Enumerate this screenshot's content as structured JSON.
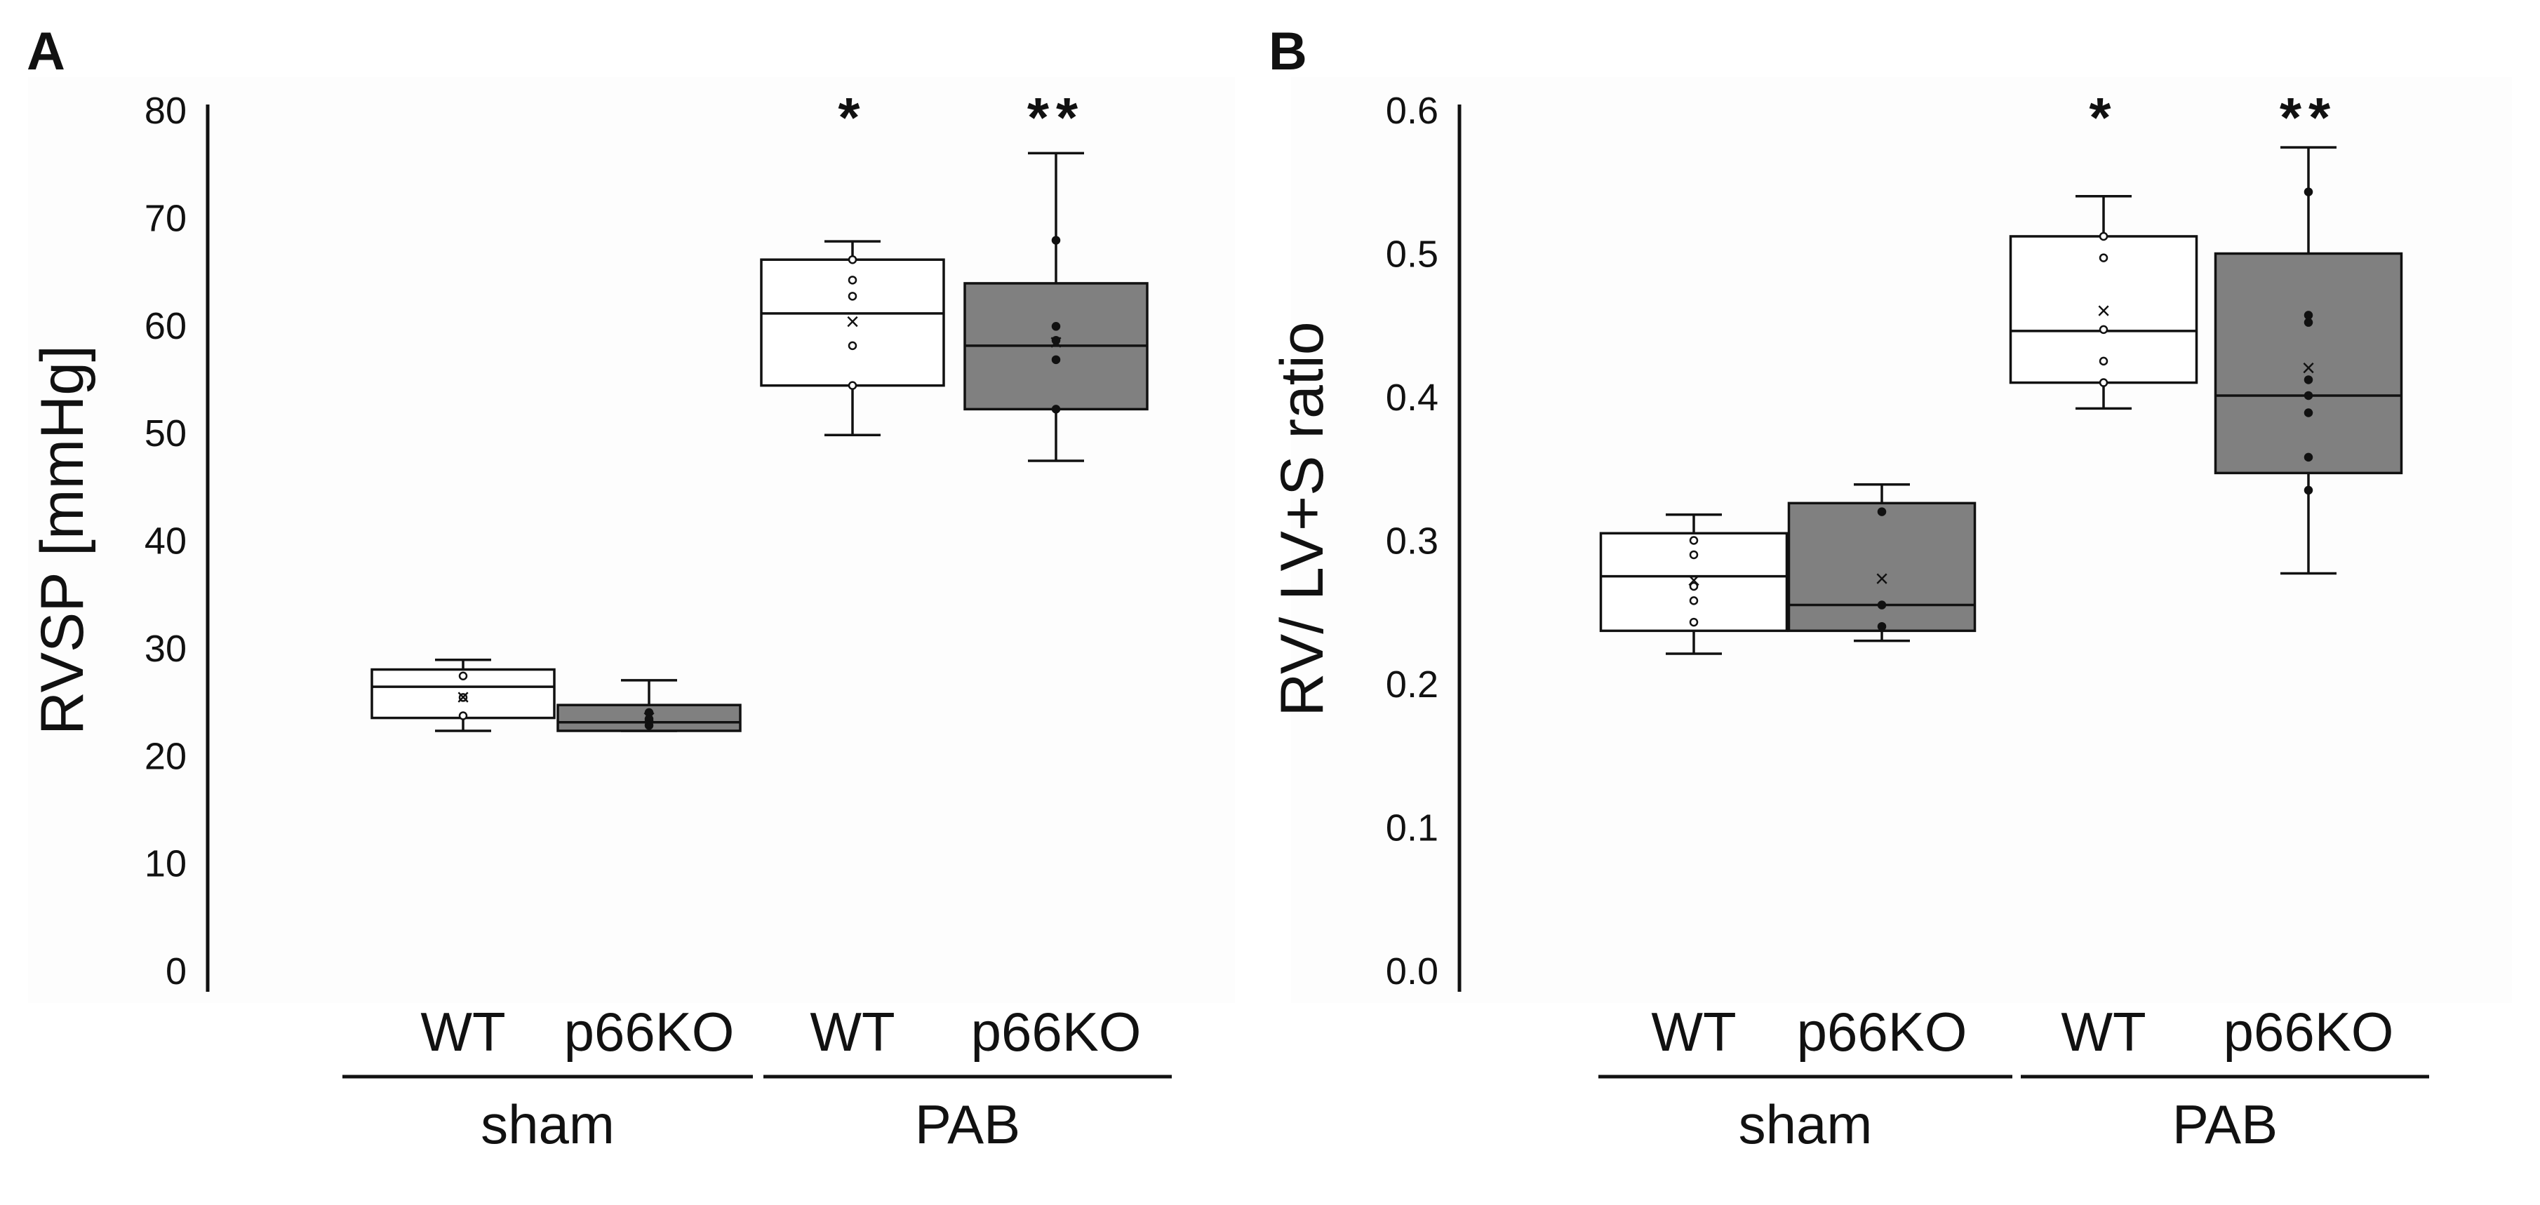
{
  "figure": {
    "panel_letters": [
      "A",
      "B"
    ]
  },
  "colors": {
    "wt_fill": "#ffffff",
    "ko_fill": "#808080",
    "stroke": "#111111",
    "dot": "#111111"
  },
  "chart_data": [
    {
      "type": "boxplot",
      "panel": "A",
      "ylabel": "RVSP [mmHg]",
      "ylim": [
        0,
        80
      ],
      "yticks": [
        "0",
        "10",
        "20",
        "30",
        "40",
        "50",
        "60",
        "70",
        "80"
      ],
      "categories": [
        "WT",
        "p66KO",
        "WT",
        "p66KO"
      ],
      "groups": [
        "sham",
        "PAB"
      ],
      "boxes": [
        {
          "category": "WT",
          "group": "sham",
          "fill": "wt",
          "whisker_low": 22.3,
          "q1": 23.5,
          "median": 26.4,
          "q3": 28.0,
          "whisker_high": 28.9,
          "mean": 25.4,
          "points": [
            23.7,
            25.4,
            27.4
          ],
          "significance": ""
        },
        {
          "category": "p66KO",
          "group": "sham",
          "fill": "ko",
          "whisker_low": 22.3,
          "q1": 22.3,
          "median": 23.1,
          "q3": 24.7,
          "whisker_high": 27.0,
          "mean": 23.5,
          "points": [
            22.8,
            23.4,
            24.0
          ],
          "significance": ""
        },
        {
          "category": "WT",
          "group": "PAB",
          "fill": "wt",
          "whisker_low": 49.8,
          "q1": 54.4,
          "median": 61.1,
          "q3": 66.1,
          "whisker_high": 67.8,
          "mean": 60.3,
          "points": [
            54.4,
            58.1,
            62.7,
            64.2,
            66.1
          ],
          "significance": "*"
        },
        {
          "category": "p66KO",
          "group": "PAB",
          "fill": "ko",
          "whisker_low": 47.4,
          "q1": 52.2,
          "median": 58.1,
          "q3": 63.9,
          "whisker_high": 76.0,
          "mean": 58.4,
          "points": [
            52.2,
            56.8,
            58.6,
            59.9,
            67.9
          ],
          "significance": "**"
        }
      ]
    },
    {
      "type": "boxplot",
      "panel": "B",
      "ylabel": "RV/ LV+S ratio",
      "ylim": [
        0.0,
        0.6
      ],
      "yticks": [
        "0.0",
        "0.1",
        "0.2",
        "0.3",
        "0.4",
        "0.5",
        "0.6"
      ],
      "categories": [
        "WT",
        "p66KO",
        "WT",
        "p66KO"
      ],
      "groups": [
        "sham",
        "PAB"
      ],
      "boxes": [
        {
          "category": "WT",
          "group": "sham",
          "fill": "wt",
          "whisker_low": 0.221,
          "q1": 0.237,
          "median": 0.275,
          "q3": 0.305,
          "whisker_high": 0.318,
          "mean": 0.272,
          "points": [
            0.243,
            0.258,
            0.268,
            0.29,
            0.3
          ],
          "significance": ""
        },
        {
          "category": "p66KO",
          "group": "sham",
          "fill": "ko",
          "whisker_low": 0.23,
          "q1": 0.237,
          "median": 0.255,
          "q3": 0.326,
          "whisker_high": 0.339,
          "mean": 0.273,
          "points": [
            0.24,
            0.255,
            0.32
          ],
          "significance": ""
        },
        {
          "category": "WT",
          "group": "PAB",
          "fill": "wt",
          "whisker_low": 0.392,
          "q1": 0.41,
          "median": 0.446,
          "q3": 0.512,
          "whisker_high": 0.54,
          "mean": 0.46,
          "points": [
            0.41,
            0.425,
            0.447,
            0.497,
            0.512
          ],
          "significance": "*"
        },
        {
          "category": "p66KO",
          "group": "PAB",
          "fill": "ko",
          "whisker_low": 0.277,
          "q1": 0.347,
          "median": 0.401,
          "q3": 0.5,
          "whisker_high": 0.574,
          "mean": 0.42,
          "points": [
            0.335,
            0.358,
            0.389,
            0.401,
            0.412,
            0.452,
            0.457,
            0.543
          ],
          "significance": "**"
        }
      ]
    }
  ]
}
